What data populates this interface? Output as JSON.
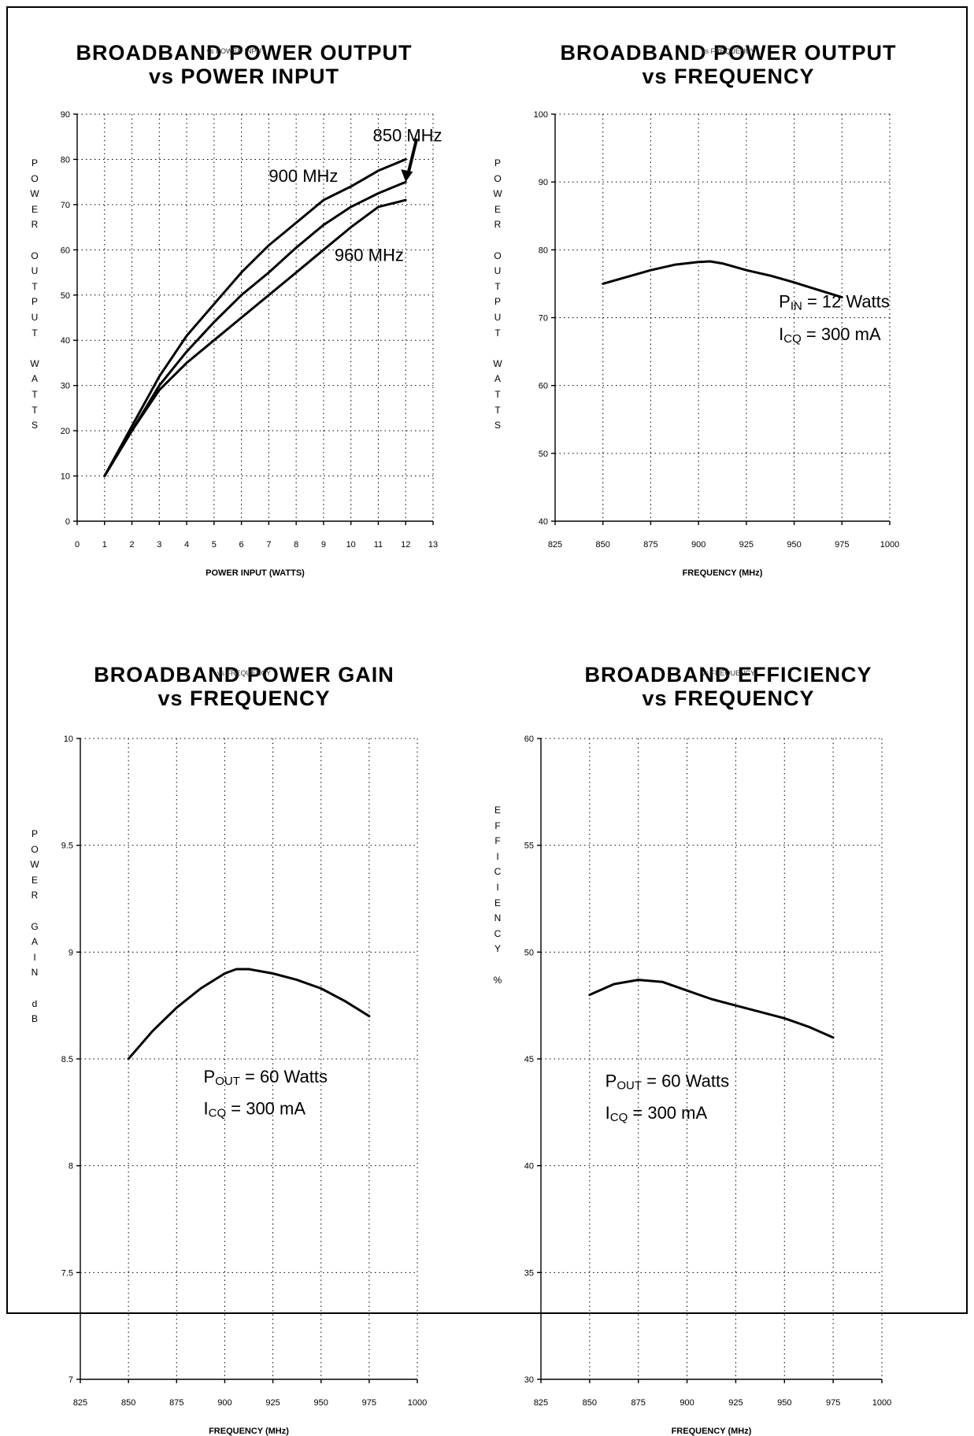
{
  "chart_data": [
    {
      "type": "line",
      "title": [
        "BROADBAND POWER OUTPUT",
        "vs POWER INPUT"
      ],
      "overlay_text": "vs POWER INPUT",
      "xlabel": "POWER INPUT (WATTS)",
      "ylabel": "POWER OUTPUT WATTS",
      "xlim": [
        0,
        13
      ],
      "ylim": [
        0,
        90
      ],
      "xticks": [
        0,
        1,
        2,
        3,
        4,
        5,
        6,
        7,
        8,
        9,
        10,
        11,
        12,
        13
      ],
      "yticks": [
        0,
        10,
        20,
        30,
        40,
        50,
        60,
        70,
        80,
        90
      ],
      "grid": true,
      "series": [
        {
          "name": "850 MHz",
          "x": [
            1,
            2,
            3,
            4,
            5,
            6,
            7,
            8,
            9,
            10,
            11,
            12
          ],
          "y": [
            10,
            20,
            29,
            35,
            40,
            45,
            50,
            55,
            60,
            65,
            69.5,
            71
          ]
        },
        {
          "name": "900 MHz",
          "x": [
            1,
            2,
            3,
            4,
            5,
            6,
            7,
            8,
            9,
            10,
            11,
            12
          ],
          "y": [
            10,
            21,
            32,
            41,
            48,
            55,
            61,
            66,
            71,
            74,
            77.5,
            80
          ]
        },
        {
          "name": "960 MHz",
          "x": [
            1,
            2,
            3,
            4,
            5,
            6,
            7,
            8,
            9,
            10,
            11,
            12
          ],
          "y": [
            10,
            20,
            30,
            37.5,
            44,
            50,
            55,
            60.5,
            65.5,
            69.5,
            72.5,
            75
          ]
        }
      ],
      "annotations": [
        {
          "text": "850 MHz",
          "x": 10.8,
          "y": 84
        },
        {
          "text": "900 MHz",
          "x": 7.0,
          "y": 75
        },
        {
          "text": "960 MHz",
          "x": 9.4,
          "y": 57.5
        }
      ],
      "arrow_target": {
        "x": 12,
        "y": 75
      }
    },
    {
      "type": "line",
      "title": [
        "BROADBAND POWER OUTPUT",
        "vs FREQUENCY"
      ],
      "overlay_text": "vs FREQUENCY",
      "xlabel": "FREQUENCY (MHz)",
      "ylabel": "POWER OUTPUT WATTS",
      "xlim": [
        825,
        1000
      ],
      "ylim": [
        40,
        100
      ],
      "xticks": [
        825,
        850,
        875,
        900,
        925,
        950,
        975,
        1000
      ],
      "yticks": [
        40,
        50,
        60,
        70,
        80,
        90,
        100
      ],
      "grid": true,
      "series": [
        {
          "x": [
            850,
            862.5,
            875,
            887.5,
            900,
            906,
            912.5,
            925,
            937.5,
            950,
            962.5,
            975
          ],
          "y": [
            75,
            76,
            77,
            77.8,
            78.2,
            78.3,
            78.0,
            77.0,
            76.2,
            75.2,
            74.1,
            73
          ]
        }
      ],
      "annotations": [
        {
          "main": "P",
          "sub": "IN",
          "rest": " = 12 Watts",
          "x": 942,
          "y": 71.5
        },
        {
          "main": "I",
          "sub": "CQ",
          "rest": " = 300 mA",
          "x": 942,
          "y": 66.7
        }
      ]
    },
    {
      "type": "line",
      "title": [
        "BROADBAND POWER GAIN",
        "vs FREQUENCY"
      ],
      "overlay_text": "vs FREQUENCY",
      "xlabel": "FREQUENCY (MHz)",
      "ylabel": "POWER GAIN dB",
      "xlim": [
        825,
        1000
      ],
      "ylim": [
        7,
        10
      ],
      "xticks": [
        825,
        850,
        875,
        900,
        925,
        950,
        975,
        1000
      ],
      "yticks": [
        7,
        7.5,
        8,
        8.5,
        9,
        9.5,
        10
      ],
      "grid": true,
      "series": [
        {
          "x": [
            850,
            862.5,
            875,
            887.5,
            900,
            906,
            912.5,
            925,
            937.5,
            950,
            962.5,
            975
          ],
          "y": [
            8.5,
            8.63,
            8.74,
            8.83,
            8.9,
            8.92,
            8.92,
            8.9,
            8.87,
            8.83,
            8.77,
            8.7
          ]
        }
      ],
      "annotations": [
        {
          "main": "P",
          "sub": "OUT",
          "rest": " = 60 Watts",
          "x": 889,
          "y": 8.39
        },
        {
          "main": "I",
          "sub": "CQ",
          "rest": " = 300 mA",
          "x": 889,
          "y": 8.24
        }
      ]
    },
    {
      "type": "line",
      "title": [
        "BROADBAND EFFICIENCY",
        "vs FREQUENCY"
      ],
      "overlay_text": "vs FREQUENCY",
      "xlabel": "FREQUENCY (MHz)",
      "ylabel": "EFFICIENCY %",
      "xlim": [
        825,
        1000
      ],
      "ylim": [
        30,
        60
      ],
      "xticks": [
        825,
        850,
        875,
        900,
        925,
        950,
        975,
        1000
      ],
      "yticks": [
        30,
        35,
        40,
        45,
        50,
        55,
        60
      ],
      "grid": true,
      "series": [
        {
          "x": [
            850,
            862.5,
            875,
            887.5,
            900,
            912.5,
            925,
            937.5,
            950,
            962.5,
            975
          ],
          "y": [
            48,
            48.5,
            48.7,
            48.6,
            48.2,
            47.8,
            47.5,
            47.2,
            46.9,
            46.5,
            46
          ]
        }
      ],
      "annotations": [
        {
          "main": "P",
          "sub": "OUT",
          "rest": " = 60 Watts",
          "x": 858,
          "y": 43.7
        },
        {
          "main": "I",
          "sub": "CQ",
          "rest": " = 300 mA",
          "x": 858,
          "y": 42.2
        }
      ]
    }
  ]
}
